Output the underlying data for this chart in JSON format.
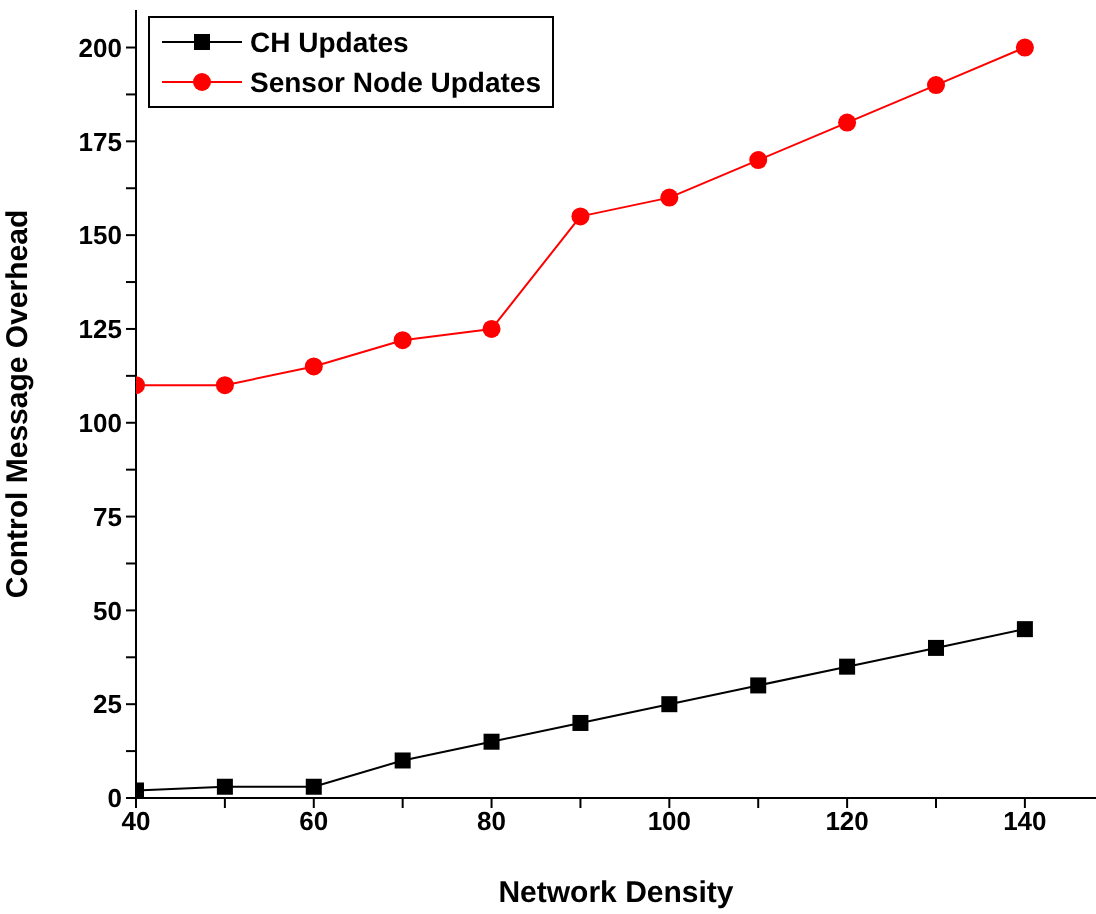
{
  "chart_data": {
    "type": "line",
    "xlabel": "Network Density",
    "ylabel": "Control Message Overhead",
    "x": [
      40,
      50,
      60,
      70,
      80,
      90,
      100,
      110,
      120,
      130,
      140
    ],
    "series": [
      {
        "name": "CH Updates",
        "color": "#000000",
        "marker": "square",
        "values": [
          2,
          3,
          3,
          10,
          15,
          20,
          25,
          30,
          35,
          40,
          45
        ]
      },
      {
        "name": "Sensor Node Updates",
        "color": "#ff0000",
        "marker": "circle",
        "values": [
          110,
          110,
          115,
          122,
          125,
          155,
          160,
          170,
          180,
          190,
          200
        ]
      }
    ],
    "xlim": [
      40,
      148
    ],
    "xticks": [
      40,
      {
        "value": 50,
        "label": null
      },
      60,
      {
        "value": 70,
        "label": null
      },
      80,
      {
        "value": 90,
        "label": null
      },
      100,
      {
        "value": 110,
        "label": null
      },
      120,
      {
        "value": 130,
        "label": null
      },
      140
    ],
    "ylim": [
      0,
      210
    ],
    "yticks": [
      0,
      {
        "value": 12.5,
        "label": null
      },
      25,
      {
        "value": 37.5,
        "label": null
      },
      50,
      {
        "value": 62.5,
        "label": null
      },
      75,
      {
        "value": 87.5,
        "label": null
      },
      100,
      {
        "value": 112.5,
        "label": null
      },
      125,
      {
        "value": 137.5,
        "label": null
      },
      150,
      {
        "value": 162.5,
        "label": null
      },
      175,
      {
        "value": 187.5,
        "label": null
      },
      200
    ],
    "legend": "top left",
    "grid": false,
    "line_style": "solid"
  }
}
